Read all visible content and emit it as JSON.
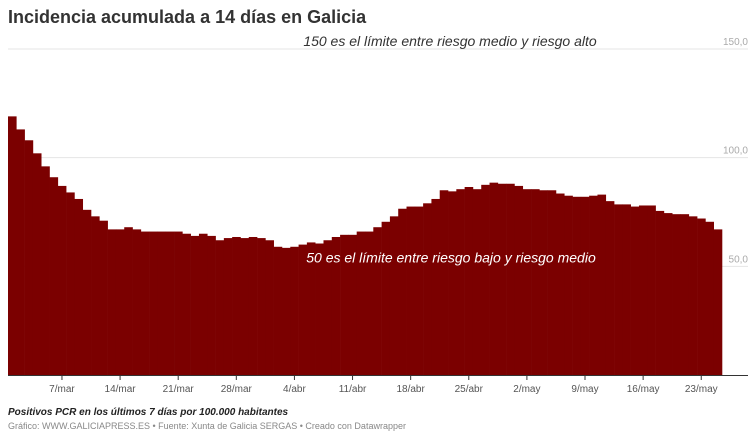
{
  "title": "Incidencia acumulada a 14 días en Galicia",
  "subtitle_note": "Positivos PCR en los últimos 7 días por 100.000 habitantes",
  "source_line": "Gráfico: WWW.GALICIAPRESS.ES • Fuente: Xunta de Galicia SERGAS • Creado con Datawrapper",
  "chart_data": {
    "type": "bar",
    "title": "Incidencia acumulada a 14 días en Galicia",
    "ylim": [
      0,
      150
    ],
    "yticks": [
      {
        "v": 50,
        "label": "50,0"
      },
      {
        "v": 100,
        "label": "100,0"
      },
      {
        "v": 150,
        "label": "150,0"
      }
    ],
    "xticks": [
      {
        "i": 6,
        "label": "7/mar"
      },
      {
        "i": 13,
        "label": "14/mar"
      },
      {
        "i": 20,
        "label": "21/mar"
      },
      {
        "i": 27,
        "label": "28/mar"
      },
      {
        "i": 34,
        "label": "4/abr"
      },
      {
        "i": 41,
        "label": "11/abr"
      },
      {
        "i": 48,
        "label": "18/abr"
      },
      {
        "i": 55,
        "label": "25/abr"
      },
      {
        "i": 62,
        "label": "2/may"
      },
      {
        "i": 69,
        "label": "9/may"
      },
      {
        "i": 76,
        "label": "16/may"
      },
      {
        "i": 83,
        "label": "23/may"
      }
    ],
    "start_date": "1/mar",
    "end_date": "25/may",
    "color": "#7b0000",
    "grid": true,
    "annotations": [
      {
        "text": "150 es el límite entre riesgo medio y riesgo alto",
        "y": 150,
        "color": "#333333"
      },
      {
        "text": "50 es el límite entre riesgo bajo y riesgo medio",
        "y": 50,
        "color": "#ffffff"
      }
    ],
    "values": [
      119,
      113,
      108,
      102,
      96,
      91,
      87,
      84,
      81,
      76,
      73,
      71,
      67,
      67,
      68,
      67,
      66,
      66,
      66,
      66,
      66,
      65,
      64,
      65,
      64,
      62,
      63,
      63.5,
      63,
      63.5,
      63,
      62,
      59,
      58.5,
      59,
      60,
      61,
      60.5,
      62,
      63.5,
      64.5,
      64.5,
      66,
      66,
      68,
      70.5,
      73,
      76.5,
      77.5,
      77.5,
      79,
      81,
      85,
      84.5,
      85.5,
      86.5,
      85.5,
      87.5,
      88.5,
      88,
      88,
      87,
      85.5,
      85.5,
      85,
      85,
      83.5,
      82.5,
      82,
      82,
      82.5,
      83,
      80,
      78.5,
      78.5,
      77.5,
      78,
      78,
      75.5,
      74.5,
      74,
      74,
      73,
      72,
      70.5,
      67
    ]
  }
}
